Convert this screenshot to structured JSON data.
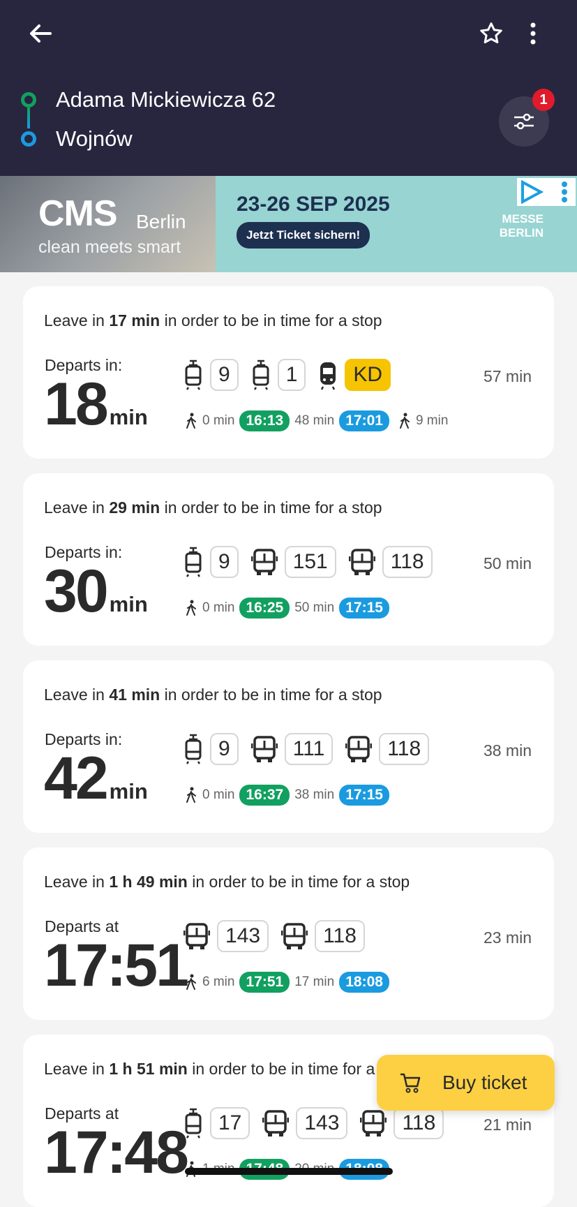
{
  "header": {
    "origin": "Adama Mickiewicza 62",
    "destination": "Wojnów",
    "filter_badge": "1"
  },
  "ad": {
    "brand": "CMS",
    "city": "Berlin",
    "tagline": "clean meets smart",
    "dates": "23-26 SEP 2025",
    "cta": "Jetzt Ticket sichern!",
    "sponsor": "MESSE BERLIN"
  },
  "colors": {
    "header": "#28263f",
    "depart_time": "#12a060",
    "arrive_time": "#1a9be0",
    "kd_badge": "#f6c400",
    "buy_button": "#fdd043"
  },
  "connections": [
    {
      "leave_prefix": "Leave in",
      "leave_value": "17 min",
      "leave_suffix": "in order to be in time for a stop",
      "dep_label": "Departs in:",
      "dep_value": "18",
      "dep_unit": "min",
      "duration": "57 min",
      "legs": [
        {
          "icon": "tram-icon",
          "line": "9"
        },
        {
          "icon": "tram-icon",
          "line": "1"
        },
        {
          "icon": "train-icon",
          "line": "KD"
        }
      ],
      "walk_start": "0 min",
      "depart": "16:13",
      "ride": "48 min",
      "arrive": "17:01",
      "walk_end": "9 min"
    },
    {
      "leave_prefix": "Leave in",
      "leave_value": "29 min",
      "leave_suffix": "in order to be in time for a stop",
      "dep_label": "Departs in:",
      "dep_value": "30",
      "dep_unit": "min",
      "duration": "50 min",
      "legs": [
        {
          "icon": "tram-icon",
          "line": "9"
        },
        {
          "icon": "bus-icon",
          "line": "151"
        },
        {
          "icon": "bus-icon",
          "line": "118"
        }
      ],
      "walk_start": "0 min",
      "depart": "16:25",
      "ride": "50 min",
      "arrive": "17:15"
    },
    {
      "leave_prefix": "Leave in",
      "leave_value": "41 min",
      "leave_suffix": "in order to be in time for a stop",
      "dep_label": "Departs in:",
      "dep_value": "42",
      "dep_unit": "min",
      "duration": "38 min",
      "legs": [
        {
          "icon": "tram-icon",
          "line": "9"
        },
        {
          "icon": "bus-icon",
          "line": "111"
        },
        {
          "icon": "bus-icon",
          "line": "118"
        }
      ],
      "walk_start": "0 min",
      "depart": "16:37",
      "ride": "38 min",
      "arrive": "17:15"
    },
    {
      "leave_prefix": "Leave in",
      "leave_value": "1 h 49 min",
      "leave_suffix": "in order to be in time for a stop",
      "dep_label": "Departs at",
      "dep_value": "17:51",
      "dep_unit": "",
      "duration": "23 min",
      "legs": [
        {
          "icon": "bus-icon",
          "line": "143"
        },
        {
          "icon": "bus-icon",
          "line": "118"
        }
      ],
      "walk_start": "6 min",
      "depart": "17:51",
      "ride": "17 min",
      "arrive": "18:08"
    },
    {
      "leave_prefix": "Leave in",
      "leave_value": "1 h 51 min",
      "leave_suffix": "in order to be in time for a stop",
      "dep_label": "Departs at",
      "dep_value": "17:48",
      "dep_unit": "",
      "duration": "21 min",
      "legs": [
        {
          "icon": "tram-icon",
          "line": "17"
        },
        {
          "icon": "bus-icon",
          "line": "143"
        },
        {
          "icon": "bus-icon",
          "line": "118"
        }
      ],
      "walk_start": "1 min",
      "depart": "17:48",
      "ride": "20 min",
      "arrive": "18:08"
    }
  ],
  "buy_ticket": "Buy ticket"
}
